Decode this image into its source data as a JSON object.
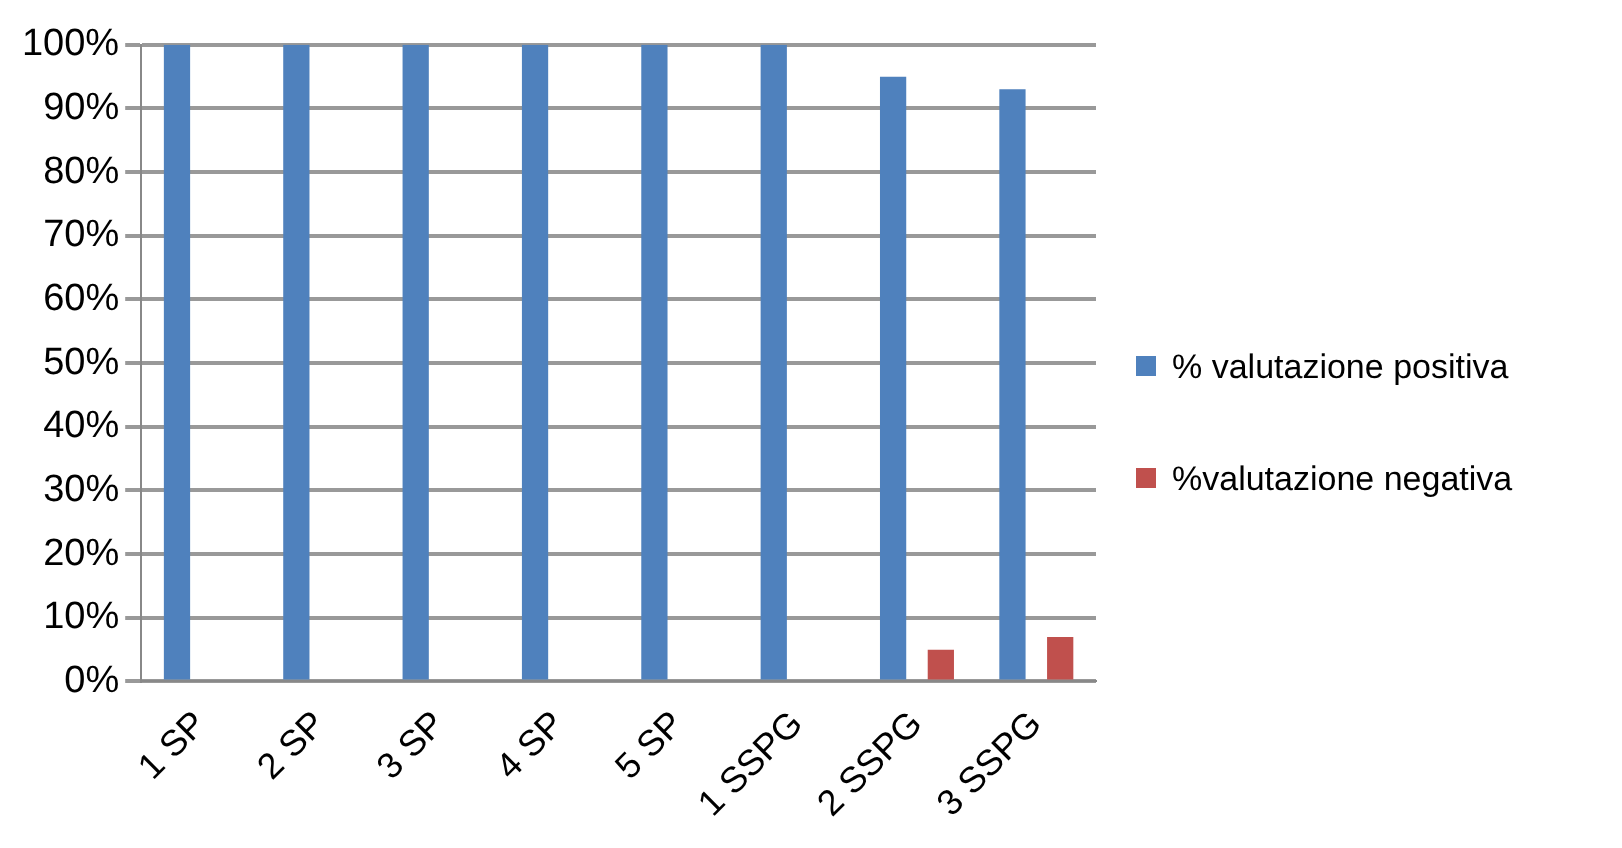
{
  "chart_data": {
    "type": "bar",
    "categories": [
      "1 SP",
      "2 SP",
      "3 SP",
      "4 SP",
      "5 SP",
      "1 SSPG",
      "2 SSPG",
      "3 SSPG"
    ],
    "series": [
      {
        "name": "% valutazione positiva",
        "color": "#4f81bd",
        "values": [
          100,
          100,
          100,
          100,
          100,
          100,
          95,
          93
        ]
      },
      {
        "name": "%valutazione negativa",
        "color": "#c0504d",
        "values": [
          0,
          0,
          0,
          0,
          0,
          0,
          5,
          7
        ]
      }
    ],
    "ylim": [
      0,
      100
    ],
    "yticks": [
      {
        "value": 0,
        "label": "0%"
      },
      {
        "value": 10,
        "label": "10%"
      },
      {
        "value": 20,
        "label": "20%"
      },
      {
        "value": 30,
        "label": "30%"
      },
      {
        "value": 40,
        "label": "40%"
      },
      {
        "value": 50,
        "label": "50%"
      },
      {
        "value": 60,
        "label": "60%"
      },
      {
        "value": 70,
        "label": "70%"
      },
      {
        "value": 80,
        "label": "80%"
      },
      {
        "value": 90,
        "label": "90%"
      },
      {
        "value": 100,
        "label": "100%"
      }
    ],
    "grid": "y",
    "legend": "right"
  }
}
